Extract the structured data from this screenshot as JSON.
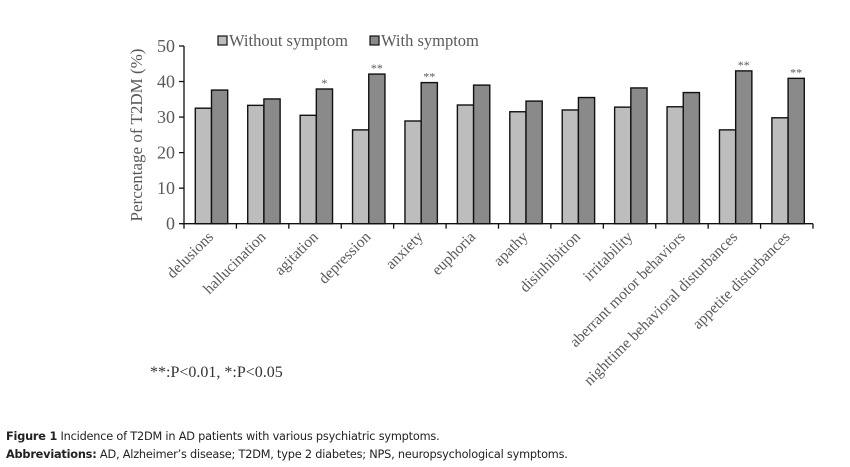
{
  "chart_data": {
    "type": "bar",
    "title": "",
    "xlabel": "",
    "ylabel": "Percentage of T2DM  (%)",
    "ylim": [
      0,
      50
    ],
    "yticks": [
      0,
      10,
      20,
      30,
      40,
      50
    ],
    "grid": false,
    "legend_position": "top",
    "categories": [
      "delusions",
      "hallucination",
      "agitation",
      "depression",
      "anxiety",
      "euphoria",
      "apathy",
      "disinhibition",
      "irritability",
      "aberrant motor behaviors",
      "nighttime behavioral disturbances",
      "appetite disturbances"
    ],
    "series": [
      {
        "name": "Without symptom",
        "color": "#bdbdbd",
        "values": [
          32.5,
          33.3,
          30.5,
          26.4,
          28.9,
          33.4,
          31.5,
          32.0,
          32.8,
          32.9,
          26.4,
          29.8
        ]
      },
      {
        "name": "With symptom",
        "color": "#8a8a8a",
        "values": [
          37.6,
          35.1,
          37.9,
          42.1,
          39.7,
          39.0,
          34.5,
          35.5,
          38.2,
          36.9,
          43.0,
          40.9
        ]
      }
    ],
    "annotations": [
      "",
      "",
      "*",
      "**",
      "**",
      "",
      "",
      "",
      "",
      "",
      "**",
      "**"
    ],
    "significance_note": "**:P<0.01, *:P<0.05"
  },
  "caption": {
    "figure_label": "Figure 1",
    "figure_text": " Incidence of T2DM in AD patients with various psychiatric symptoms.",
    "abbrev_label": "Abbreviations:",
    "abbrev_text": " AD, Alzheimer’s disease; T2DM, type 2 diabetes; NPS, neuropsychological symptoms."
  }
}
